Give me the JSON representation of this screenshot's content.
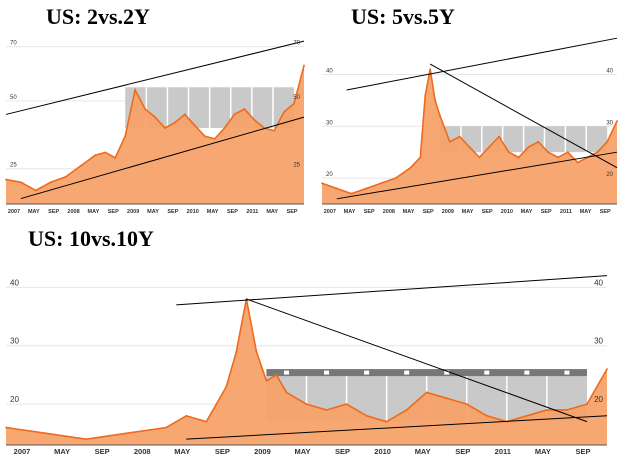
{
  "colors": {
    "area_fill": "#f7a36a",
    "line": "#ee6a1c",
    "gray_box": "#c9c9c9",
    "dark_bar": "#777777",
    "trend": "#000000",
    "axis_text": "#333333"
  },
  "chart_data": [
    {
      "type": "area",
      "title": "US: 2vs.2Y",
      "xticks": [
        "2007",
        "MAY",
        "SEP",
        "2008",
        "MAY",
        "SEP",
        "2009",
        "MAY",
        "SEP",
        "2010",
        "MAY",
        "SEP",
        "2011",
        "MAY",
        "SEP"
      ],
      "ylim": [
        12,
        75
      ],
      "yticks_left": [
        70,
        50,
        25
      ],
      "yticks_right": [
        70,
        50,
        25
      ],
      "grid": true,
      "x": [
        0,
        3,
        6,
        9,
        12,
        15,
        18,
        20,
        22,
        24,
        26,
        28,
        30,
        32,
        34,
        36,
        38,
        40,
        42,
        44,
        46,
        48,
        50,
        52,
        54,
        56,
        58,
        60
      ],
      "values": [
        21,
        20,
        17,
        20,
        22,
        26,
        30,
        31,
        29,
        37,
        54,
        47,
        44,
        40,
        42,
        45,
        41,
        37,
        36,
        40,
        45,
        47,
        43,
        40,
        39,
        46,
        49,
        63
      ],
      "gray_box": {
        "x_from": 24,
        "x_to": 58,
        "y_from": 40,
        "y_to": 55
      },
      "trendlines": [
        {
          "from": [
            0,
            45
          ],
          "to": [
            60,
            72
          ]
        },
        {
          "from": [
            3,
            14
          ],
          "to": [
            60,
            44
          ]
        }
      ]
    },
    {
      "type": "area",
      "title": "US: 5vs.5Y",
      "xticks": [
        "2007",
        "MAY",
        "SEP",
        "2008",
        "MAY",
        "SEP",
        "2009",
        "MAY",
        "SEP",
        "2010",
        "MAY",
        "SEP",
        "2011",
        "MAY",
        "SEP"
      ],
      "ylim": [
        15,
        48
      ],
      "yticks_left": [
        40,
        30,
        20
      ],
      "yticks_right": [
        40,
        30,
        20
      ],
      "grid": true,
      "x": [
        0,
        3,
        6,
        9,
        12,
        15,
        18,
        20,
        21,
        22,
        23,
        24,
        26,
        28,
        30,
        32,
        34,
        36,
        38,
        40,
        42,
        44,
        46,
        48,
        50,
        52,
        54,
        56,
        58,
        60
      ],
      "values": [
        19,
        18,
        17,
        18,
        19,
        20,
        22,
        24,
        36,
        41,
        35,
        32,
        27,
        28,
        26,
        24,
        26,
        28,
        25,
        24,
        26,
        27,
        25,
        24,
        25,
        23,
        24,
        25,
        27,
        31
      ],
      "gray_box": {
        "x_from": 24,
        "x_to": 58,
        "y_from": 25,
        "y_to": 30
      },
      "trendlines": [
        {
          "from": [
            5,
            37
          ],
          "to": [
            60,
            47
          ]
        },
        {
          "from": [
            22,
            42
          ],
          "to": [
            60,
            22
          ]
        },
        {
          "from": [
            3,
            16
          ],
          "to": [
            60,
            25
          ]
        }
      ]
    },
    {
      "type": "area",
      "title": "US: 10vs.10Y",
      "xticks": [
        "2007",
        "MAY",
        "SEP",
        "2008",
        "MAY",
        "SEP",
        "2009",
        "MAY",
        "SEP",
        "2010",
        "MAY",
        "SEP",
        "2011",
        "MAY",
        "SEP"
      ],
      "ylim": [
        13,
        44
      ],
      "yticks_left": [
        40,
        30,
        20
      ],
      "yticks_right": [
        40,
        30,
        20
      ],
      "grid": true,
      "x": [
        0,
        4,
        8,
        12,
        16,
        18,
        20,
        22,
        23,
        24,
        25,
        26,
        27,
        28,
        30,
        32,
        34,
        36,
        38,
        40,
        42,
        44,
        46,
        48,
        50,
        52,
        54,
        56,
        58,
        60
      ],
      "values": [
        16,
        15,
        14,
        15,
        16,
        18,
        17,
        23,
        29,
        38,
        29,
        24,
        25,
        22,
        20,
        19,
        20,
        18,
        17,
        19,
        22,
        21,
        20,
        18,
        17,
        18,
        19,
        19,
        20,
        26
      ],
      "gray_box": {
        "x_from": 26,
        "x_to": 58,
        "y_from": 17,
        "y_to": 26
      },
      "trendlines": [
        {
          "from": [
            17,
            37
          ],
          "to": [
            60,
            42
          ]
        },
        {
          "from": [
            24,
            38
          ],
          "to": [
            58,
            17
          ]
        },
        {
          "from": [
            18,
            14
          ],
          "to": [
            60,
            18
          ]
        }
      ]
    }
  ]
}
